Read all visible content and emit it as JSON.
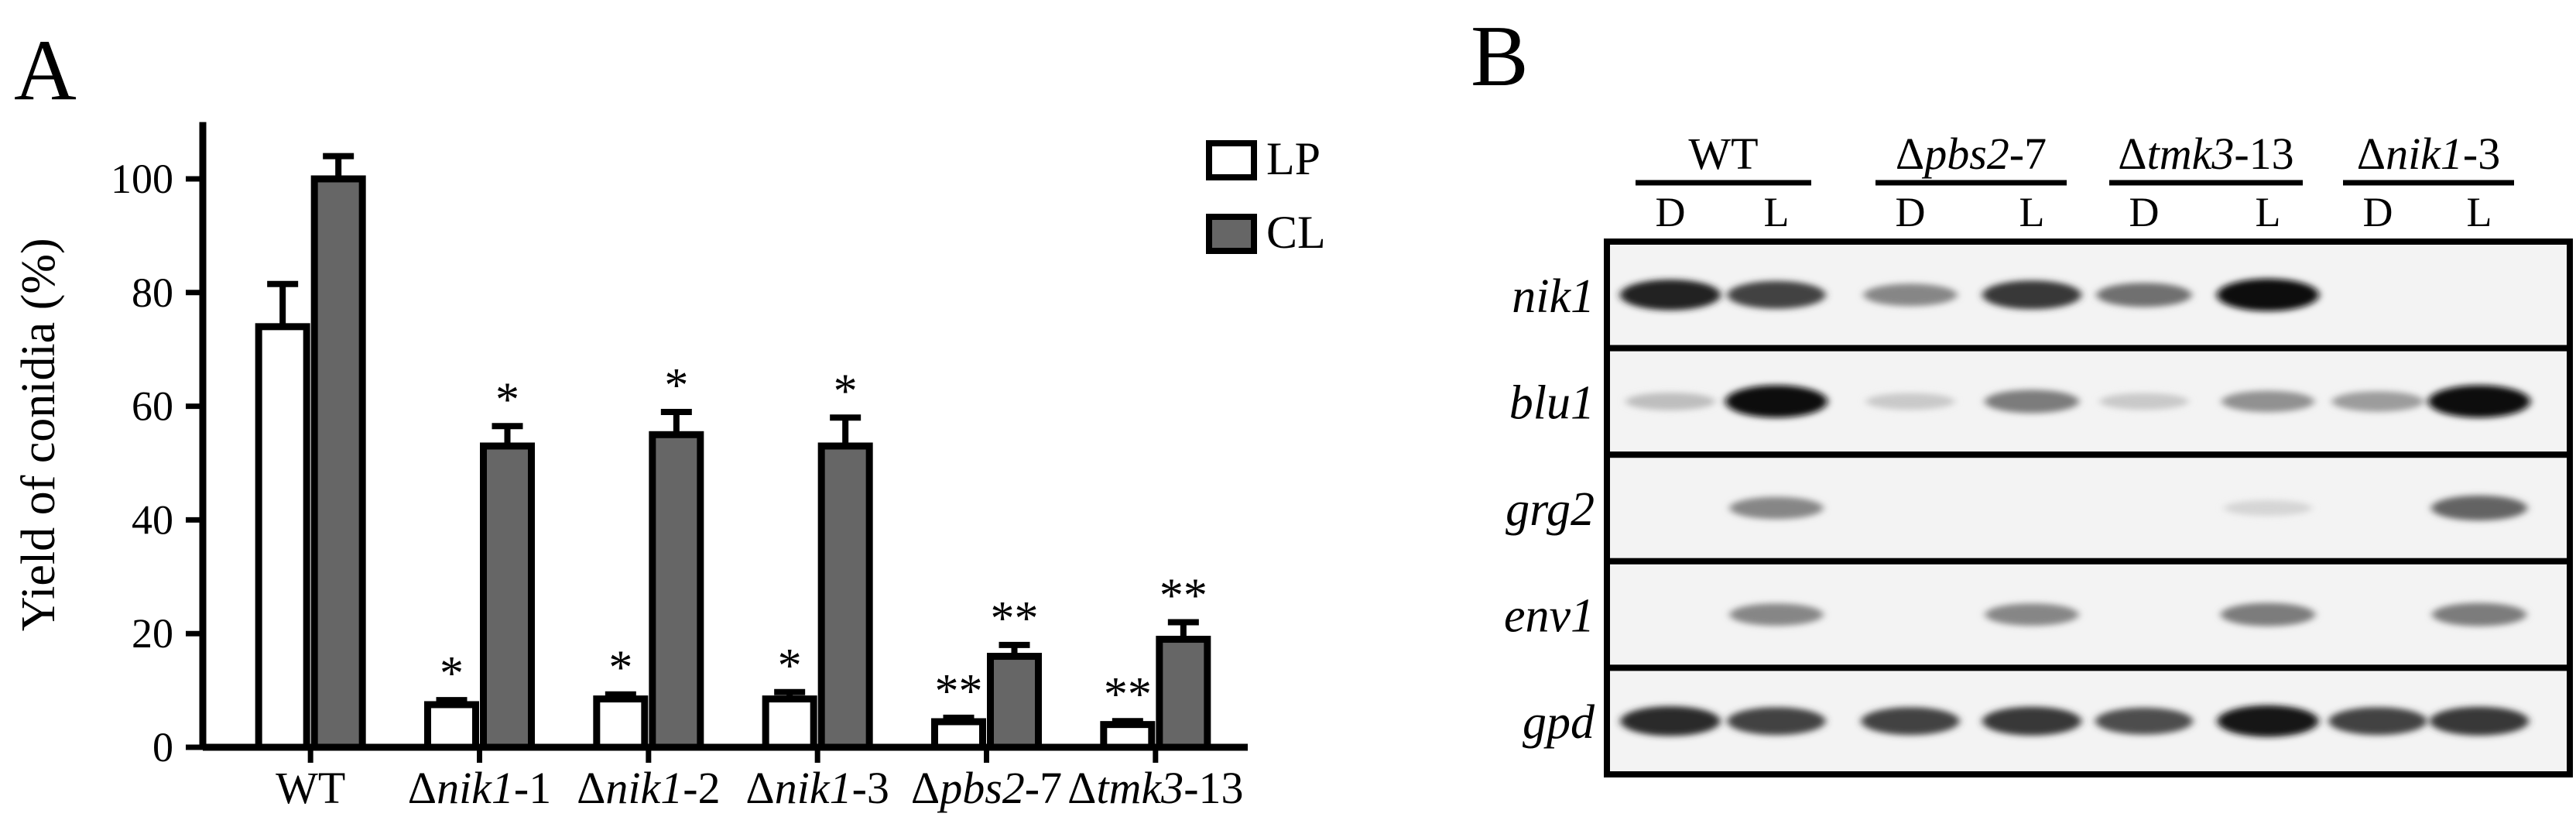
{
  "panel_a": {
    "letter": "A",
    "chart_data": {
      "type": "bar",
      "ylabel": "Yield of conidia (%)",
      "xlabel": "",
      "title": "",
      "ylim": [
        0,
        110
      ],
      "yticks": [
        0,
        20,
        40,
        60,
        80,
        100
      ],
      "categories": [
        {
          "pre": "",
          "it": "",
          "post": "WT"
        },
        {
          "pre": "Δ",
          "it": "nik1",
          "post": "-1"
        },
        {
          "pre": "Δ",
          "it": "nik1",
          "post": "-2"
        },
        {
          "pre": "Δ",
          "it": "nik1",
          "post": "-3"
        },
        {
          "pre": "Δ",
          "it": "pbs2",
          "post": "-7"
        },
        {
          "pre": "Δ",
          "it": "tmk3",
          "post": "-13"
        }
      ],
      "series": [
        {
          "name": "LP",
          "color": "#ffffff",
          "values": [
            74,
            7.5,
            8.5,
            8.5,
            4.5,
            4
          ],
          "errors": [
            7.5,
            0.8,
            0.8,
            1.2,
            0.7,
            0.6
          ],
          "marks": [
            "",
            "*",
            "*",
            "*",
            "**",
            "**"
          ]
        },
        {
          "name": "CL",
          "color": "#666666",
          "values": [
            100,
            53,
            55,
            53,
            16,
            19
          ],
          "errors": [
            4,
            3.5,
            4,
            5,
            2,
            3
          ],
          "marks": [
            "",
            "*",
            "*",
            "*",
            "**",
            "**"
          ]
        }
      ],
      "legend_position": "top-right",
      "grid": false
    }
  },
  "panel_b": {
    "letter": "B",
    "strains": [
      {
        "pre": "",
        "it": "",
        "post": "WT"
      },
      {
        "pre": "Δ",
        "it": "pbs2",
        "post": "-7"
      },
      {
        "pre": "Δ",
        "it": "tmk3",
        "post": "-13"
      },
      {
        "pre": "Δ",
        "it": "nik1",
        "post": "-3"
      }
    ],
    "lanes": [
      "D",
      "L",
      "D",
      "L",
      "D",
      "L",
      "D",
      "L"
    ],
    "genes": [
      {
        "name": "nik1",
        "bands": [
          0.9,
          0.75,
          0.45,
          0.8,
          0.55,
          1.0,
          0,
          0
        ]
      },
      {
        "name": "blu1",
        "bands": [
          0.2,
          1.0,
          0.15,
          0.5,
          0.15,
          0.4,
          0.35,
          1.0
        ]
      },
      {
        "name": "grg2",
        "bands": [
          0,
          0.45,
          0,
          0,
          0,
          0.1,
          0,
          0.6
        ]
      },
      {
        "name": "env1",
        "bands": [
          0,
          0.45,
          0,
          0.45,
          0,
          0.5,
          0,
          0.5
        ]
      },
      {
        "name": "gpd",
        "bands": [
          0.85,
          0.75,
          0.75,
          0.8,
          0.7,
          0.95,
          0.75,
          0.8
        ]
      }
    ]
  }
}
